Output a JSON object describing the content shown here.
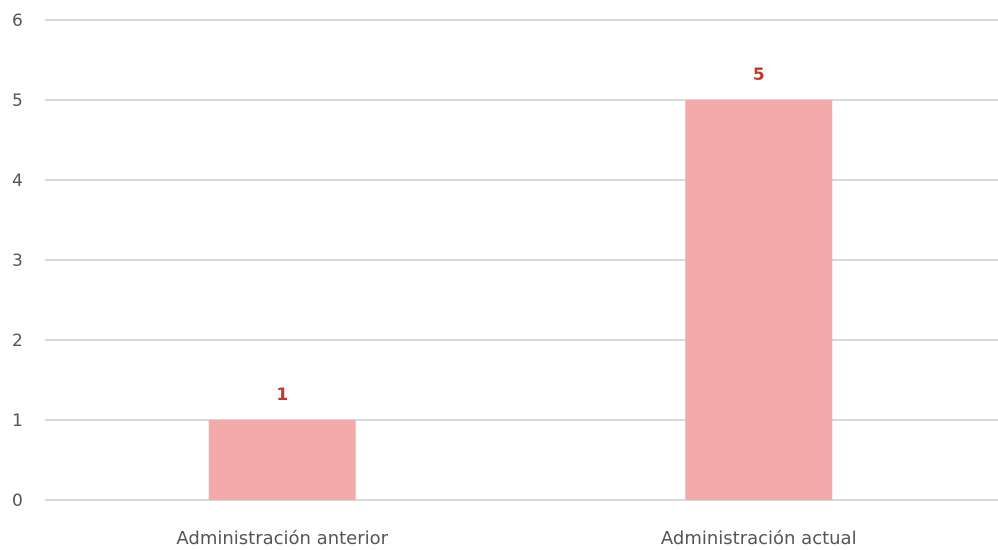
{
  "chart_data": {
    "type": "bar",
    "title": "",
    "xlabel": "",
    "ylabel": "",
    "categories": [
      "Administración anterior",
      "Administración actual"
    ],
    "values": [
      1,
      5
    ],
    "data_labels": [
      "1",
      "5"
    ],
    "ylim": [
      0,
      6
    ],
    "yticks": [
      0,
      1,
      2,
      3,
      4,
      5,
      6
    ],
    "grid": true,
    "legend": "none",
    "colors": {
      "bar": "#f4a9aa",
      "data_label": "#c0392b",
      "grid": "#d9d9d9",
      "text": "#555555"
    }
  }
}
